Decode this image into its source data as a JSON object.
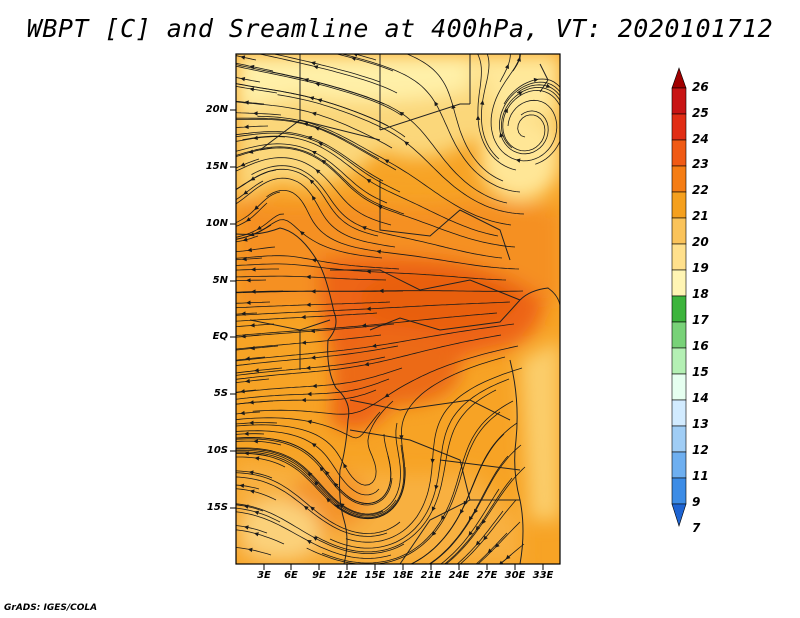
{
  "title": "WBPT [C] and Sreamline at 400hPa, VT: 2020101712",
  "footer": "GrADS: IGES/COLA",
  "lat_axis": [
    "20N",
    "15N",
    "10N",
    "5N",
    "EQ",
    "5S",
    "10S",
    "15S"
  ],
  "lon_axis": [
    "3E",
    "6E",
    "9E",
    "12E",
    "15E",
    "18E",
    "21E",
    "24E",
    "27E",
    "30E",
    "33E"
  ],
  "colorbar": {
    "levels": [
      "26",
      "25",
      "24",
      "23",
      "22",
      "21",
      "20",
      "19",
      "18",
      "17",
      "16",
      "15",
      "14",
      "13",
      "12",
      "11",
      "9",
      "7"
    ],
    "colors": [
      "#a00000",
      "#c81414",
      "#e12d14",
      "#f05a14",
      "#f57d14",
      "#f5a01e",
      "#fac35a",
      "#ffe08c",
      "#fff5b4",
      "#3cb43c",
      "#78d278",
      "#b4f0b4",
      "#e6fff0",
      "#d2ebff",
      "#a0cdf5",
      "#6eaff0",
      "#3c8ce6",
      "#1e64d2"
    ]
  },
  "colors": {
    "background": "#ffffff",
    "streamline": "#1a1a1a",
    "map_base": "#f5a623"
  }
}
